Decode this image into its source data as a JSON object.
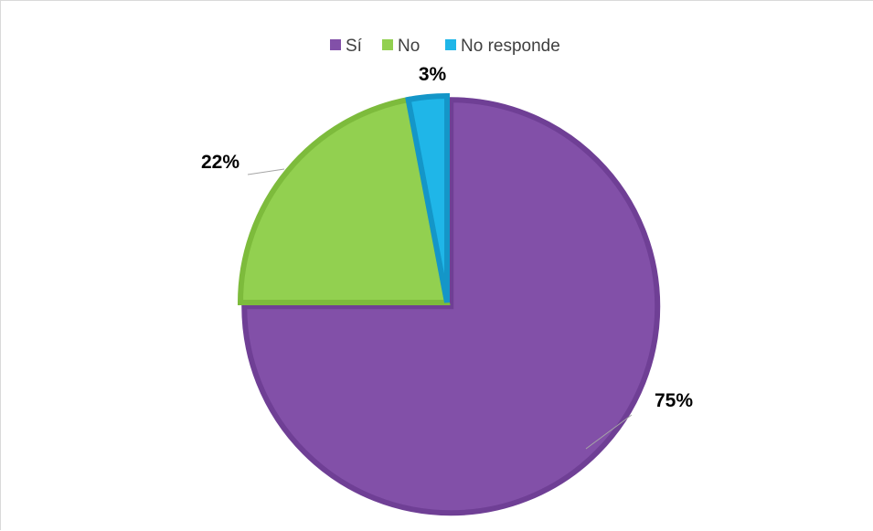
{
  "chart_data": {
    "type": "pie",
    "title": "",
    "legend_position": "top",
    "series": [
      {
        "categories": [
          "Sí",
          "No",
          "No responde"
        ],
        "values": [
          75,
          22,
          3
        ],
        "data_labels": [
          "75%",
          "22%",
          "3%"
        ],
        "colors": [
          "#8250A8",
          "#92D050",
          "#1FB6E8"
        ],
        "border_colors": [
          "#6F3F95",
          "#7DBB3C",
          "#1496C8"
        ]
      }
    ],
    "exploded_slice": "Sí"
  }
}
